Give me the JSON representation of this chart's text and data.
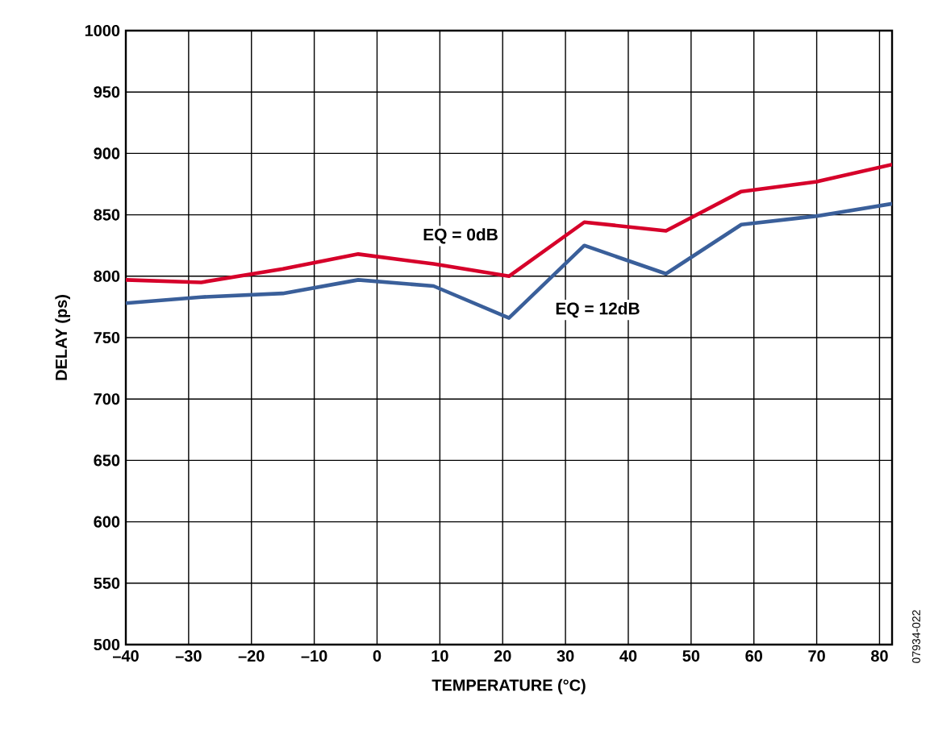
{
  "chart_data": {
    "type": "line",
    "xlabel": "TEMPERATURE (°C)",
    "ylabel": "DELAY (ps)",
    "x": [
      -40,
      -28,
      -15,
      -3,
      9,
      21,
      33,
      46,
      58,
      70,
      82
    ],
    "series": [
      {
        "name": "EQ = 0dB",
        "color": "#d6002a",
        "values": [
          797,
          795,
          806,
          818,
          810,
          800,
          844,
          837,
          869,
          877,
          891
        ]
      },
      {
        "name": "EQ = 12dB",
        "color": "#3a5f9a",
        "values": [
          778,
          783,
          786,
          797,
          792,
          766,
          825,
          802,
          842,
          849,
          859
        ]
      }
    ],
    "xlim": [
      -40,
      82
    ],
    "ylim": [
      500,
      1000
    ],
    "xticks": [
      {
        "value": -40,
        "label": "–40"
      },
      {
        "value": -30,
        "label": "–30"
      },
      {
        "value": -20,
        "label": "–20"
      },
      {
        "value": -10,
        "label": "–10"
      },
      0,
      10,
      20,
      30,
      40,
      50,
      60,
      70,
      80
    ],
    "yticks": [
      500,
      550,
      600,
      650,
      700,
      750,
      800,
      850,
      900,
      950,
      1000
    ],
    "grid": true,
    "marker": "none",
    "line_style": "solid",
    "annotations": [
      "07934-022"
    ]
  }
}
